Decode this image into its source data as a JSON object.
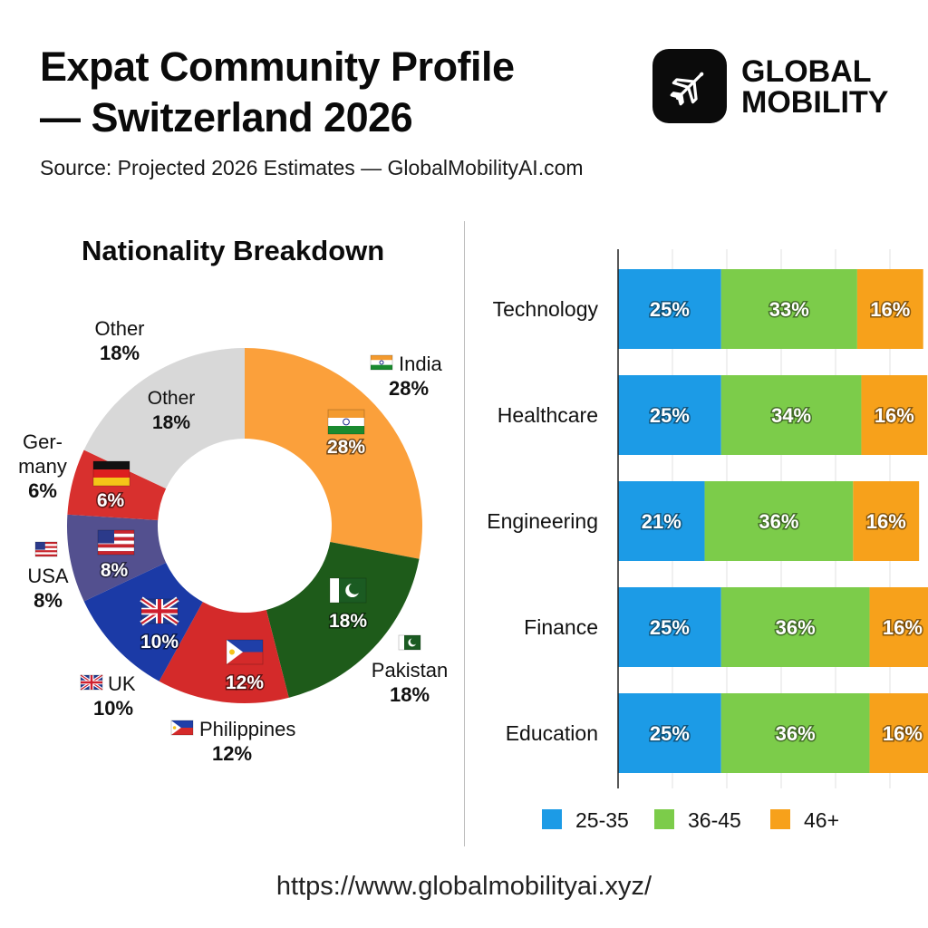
{
  "header": {
    "title_line1": "Expat Community Profile",
    "title_line2": "— Switzerland 2026",
    "source": "Source: Projected 2026 Estimates — GlobalMobilityAI.com",
    "brand_line1": "GLOBAL",
    "brand_line2": "MOBILITY",
    "brand_icon": "airplane-icon"
  },
  "footer": {
    "url": "https://www.globalmobilityai.xyz/"
  },
  "chart_data": [
    {
      "type": "pie",
      "variant": "donut",
      "title": "Nationality Breakdown",
      "slices": [
        {
          "label": "India",
          "value": 28,
          "value_label": "28%",
          "color": "#fba03b",
          "flag": "india-flag-icon"
        },
        {
          "label": "Pakistan",
          "value": 18,
          "value_label": "18%",
          "color": "#1e5b1a",
          "flag": "pakistan-flag-icon"
        },
        {
          "label": "Philippines",
          "value": 12,
          "value_label": "12%",
          "color": "#d42a2a",
          "flag": "philippines-flag-icon"
        },
        {
          "label": "UK",
          "value": 10,
          "value_label": "10%",
          "color": "#1b3aa6",
          "flag": "uk-flag-icon"
        },
        {
          "label": "USA",
          "value": 8,
          "value_label": "8%",
          "color": "#53508f",
          "flag": "usa-flag-icon"
        },
        {
          "label": "Ger-\nmany",
          "value": 6,
          "value_label": "6%",
          "color": "#d8302e",
          "flag": "germany-flag-icon"
        },
        {
          "label": "Other",
          "value": 18,
          "value_label": "18%",
          "color": "#d8d8d8",
          "flag": ""
        }
      ]
    },
    {
      "type": "bar",
      "orientation": "horizontal",
      "stacked": true,
      "categories": [
        "Technology",
        "Healthcare",
        "Engineering",
        "Finance",
        "Education"
      ],
      "series": [
        {
          "name": "25-35",
          "color": "#1c9be6",
          "values": [
            25,
            25,
            21,
            25,
            25
          ],
          "labels": [
            "25%",
            "25%",
            "21%",
            "25%",
            "25%"
          ]
        },
        {
          "name": "36-45",
          "color": "#7ccc4a",
          "values": [
            33,
            34,
            36,
            36,
            36
          ],
          "labels": [
            "33%",
            "34%",
            "36%",
            "36%",
            "36%"
          ]
        },
        {
          "name": "46+",
          "color": "#f7a11b",
          "values": [
            16,
            16,
            16,
            16,
            16
          ],
          "labels": [
            "16%",
            "16%",
            "16%",
            "16%",
            "16%"
          ]
        }
      ],
      "legend": "bottom",
      "grid": true
    }
  ]
}
